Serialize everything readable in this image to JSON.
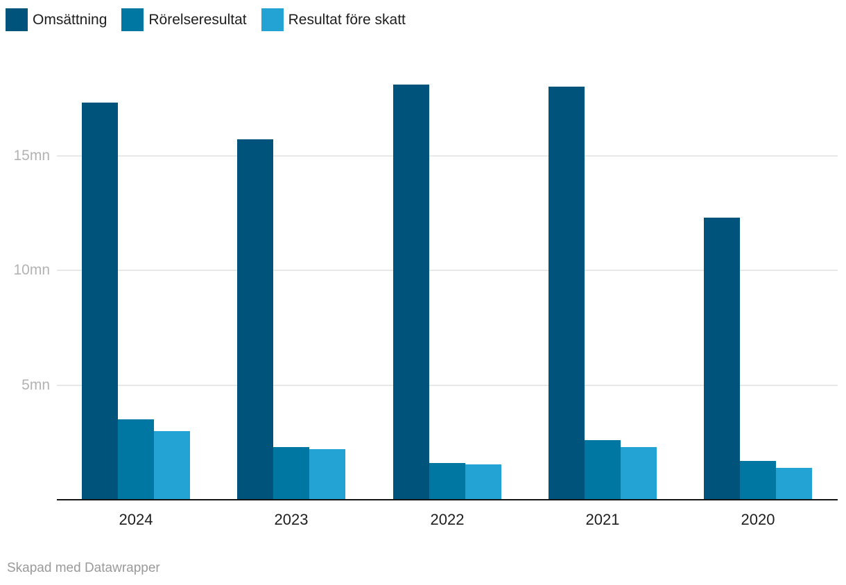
{
  "colors": {
    "series_omsattning": "#00537b",
    "series_rorelseresultat": "#0077a3",
    "series_resultat_fore_skatt": "#22a3d3",
    "gridline": "#e8e8e8",
    "y_tick_text": "#b3b3b3",
    "x_tick_text": "#1e1e1e",
    "legend_text": "#1d1d1d",
    "baseline": "#151515",
    "footer_text": "#9a9a9a",
    "background": "#ffffff"
  },
  "chart_data": {
    "type": "bar",
    "categories": [
      "2024",
      "2023",
      "2022",
      "2021",
      "2020"
    ],
    "series": [
      {
        "name": "Omsättning",
        "color": "#00537b",
        "values": [
          17.3,
          15.7,
          18.1,
          18.0,
          12.3
        ]
      },
      {
        "name": "Rörelseresultat",
        "color": "#0077a3",
        "values": [
          3.5,
          2.3,
          1.6,
          2.6,
          1.7
        ]
      },
      {
        "name": "Resultat före skatt",
        "color": "#22a3d3",
        "values": [
          3.0,
          2.2,
          1.55,
          2.3,
          1.4
        ]
      }
    ],
    "title": "",
    "xlabel": "",
    "ylabel": "",
    "unit": "mn",
    "y_ticks": [
      {
        "value": 5,
        "label": "5mn"
      },
      {
        "value": 10,
        "label": "10mn"
      },
      {
        "value": 15,
        "label": "15mn"
      }
    ],
    "ylim": [
      0,
      19.4
    ],
    "grid": true,
    "legend_position": "top-left",
    "bar_grouping": "grouped"
  },
  "footer": {
    "credit": "Skapad med Datawrapper"
  }
}
